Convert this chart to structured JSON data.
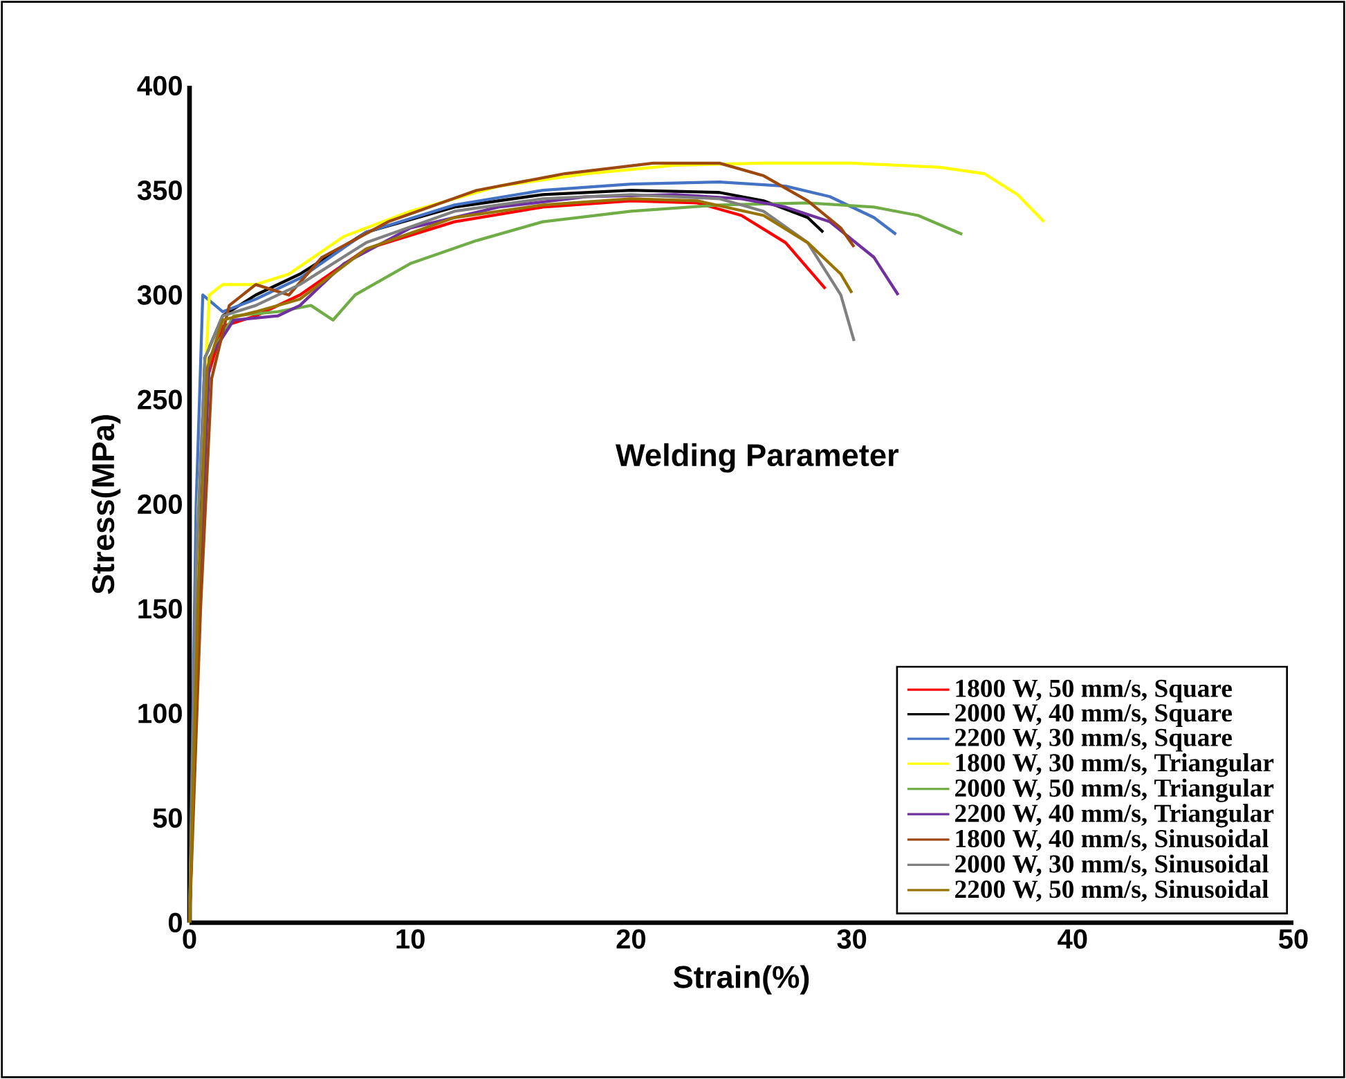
{
  "chart_data": {
    "type": "line",
    "xlabel": "Strain(%)",
    "ylabel": "Stress(MPa)",
    "legend_title": "Welding Parameter",
    "xlim": [
      0,
      50
    ],
    "ylim": [
      0,
      400
    ],
    "xticks": [
      0,
      10,
      20,
      30,
      40,
      50
    ],
    "yticks": [
      0,
      50,
      100,
      150,
      200,
      250,
      300,
      350,
      400
    ],
    "grid": false,
    "legend": "bottom right",
    "marker": "none",
    "line_style": "solid",
    "series": [
      {
        "name": "1800 W, 50 mm/s, Square",
        "color": "#ff0000",
        "x": [
          0,
          0.4,
          0.8,
          1.5,
          3,
          5,
          8,
          12,
          16,
          20,
          23,
          25,
          27,
          28.8
        ],
        "values": [
          0,
          150,
          260,
          285,
          290,
          300,
          322,
          335,
          342,
          345,
          344,
          338,
          325,
          303
        ]
      },
      {
        "name": "2000 W, 40 mm/s, Square",
        "color": "#000000",
        "x": [
          0,
          0.3,
          0.7,
          1.5,
          3,
          5,
          8,
          12,
          16,
          20,
          24,
          26,
          28,
          28.7
        ],
        "values": [
          0,
          160,
          270,
          290,
          300,
          310,
          330,
          342,
          348,
          350,
          349,
          345,
          337,
          330
        ]
      },
      {
        "name": "2200 W, 30 mm/s, Square",
        "color": "#4472c4",
        "x": [
          0,
          0.3,
          0.6,
          1.5,
          3,
          5,
          8,
          12,
          16,
          20,
          24,
          27,
          29,
          31,
          32
        ],
        "values": [
          0,
          200,
          300,
          292,
          298,
          308,
          330,
          343,
          350,
          353,
          354,
          352,
          347,
          337,
          329
        ]
      },
      {
        "name": "1800 W, 30 mm/s, Triangular",
        "color": "#ffff00",
        "x": [
          0,
          0.4,
          0.9,
          1.5,
          3,
          4.5,
          7,
          10,
          14,
          18,
          22,
          26,
          30,
          34,
          36,
          37.5,
          38.7
        ],
        "values": [
          0,
          200,
          300,
          305,
          305,
          310,
          328,
          340,
          352,
          358,
          362,
          363,
          363,
          361,
          358,
          348,
          335
        ]
      },
      {
        "name": "2000 W, 50 mm/s, Triangular",
        "color": "#70ad47",
        "x": [
          0,
          0.4,
          0.9,
          2,
          4,
          5.5,
          6.5,
          7.5,
          10,
          13,
          16,
          20,
          24,
          28,
          31,
          33,
          35
        ],
        "values": [
          0,
          150,
          270,
          290,
          292,
          295,
          288,
          300,
          315,
          326,
          335,
          340,
          343,
          344,
          342,
          338,
          329
        ]
      },
      {
        "name": "2200 W, 40 mm/s, Triangular",
        "color": "#7030a0",
        "x": [
          0,
          0.4,
          0.9,
          2,
          4,
          5,
          7,
          10,
          14,
          18,
          22,
          25,
          27,
          29,
          31,
          32.1
        ],
        "values": [
          0,
          150,
          270,
          288,
          290,
          295,
          315,
          332,
          342,
          347,
          348,
          346,
          342,
          335,
          318,
          300
        ]
      },
      {
        "name": "1800 W, 40 mm/s, Sinusoidal",
        "color": "#9e480e",
        "x": [
          0,
          0.5,
          1,
          1.8,
          3,
          4.5,
          6,
          9,
          13,
          17,
          21,
          24,
          26,
          28,
          29.5,
          30.1
        ],
        "values": [
          0,
          150,
          260,
          295,
          305,
          300,
          318,
          335,
          350,
          358,
          363,
          363,
          357,
          345,
          332,
          323
        ]
      },
      {
        "name": "2000 W, 30 mm/s, Sinusoidal",
        "color": "#808080",
        "x": [
          0,
          0.3,
          0.7,
          1.5,
          3,
          5,
          8,
          12,
          16,
          20,
          24,
          26,
          28,
          29.5,
          30.1
        ],
        "values": [
          0,
          170,
          270,
          290,
          295,
          305,
          325,
          340,
          346,
          348,
          346,
          340,
          325,
          300,
          278
        ]
      },
      {
        "name": "2200 W, 50 mm/s, Sinusoidal",
        "color": "#997300",
        "x": [
          0,
          0.4,
          0.8,
          1.5,
          3,
          5,
          8,
          12,
          16,
          20,
          23,
          26,
          28,
          29.5,
          30
        ],
        "values": [
          0,
          160,
          265,
          288,
          292,
          298,
          322,
          337,
          343,
          346,
          345,
          338,
          325,
          310,
          301
        ]
      }
    ]
  }
}
